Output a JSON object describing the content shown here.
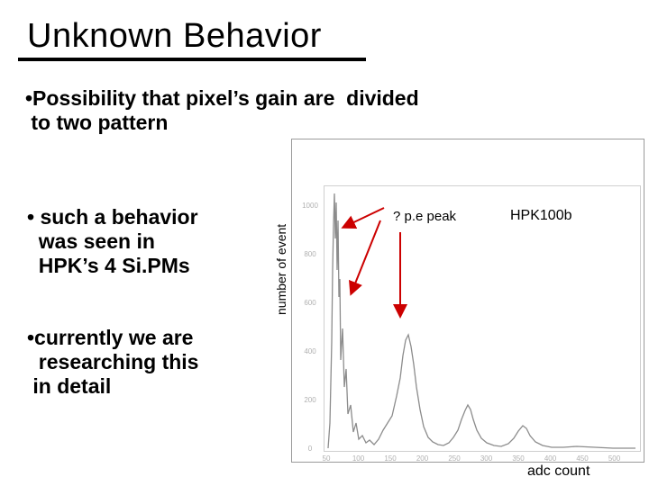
{
  "slide": {
    "title": "Unknown Behavior",
    "bullets": [
      "•Possibility that pixel’s gain are  divided\n to two pattern",
      "• such a behavior\n  was seen in\n  HPK’s 4 Si.PMs",
      "•currently we are\n  researching this\n in detail"
    ]
  },
  "plot": {
    "ylabel": "number of event",
    "xlabel": "adc count",
    "annotation": "? p.e peak",
    "label": "HPK100b",
    "y_ticks": [
      "0",
      "200",
      "400",
      "600",
      "800",
      "1000"
    ],
    "x_ticks": [
      "50",
      "100",
      "150",
      "200",
      "250",
      "300",
      "350",
      "400",
      "450",
      "500"
    ],
    "colors": {
      "trace": "#8c8c8c",
      "arrow": "#cc0000",
      "frame": "#9a9a9a"
    }
  }
}
